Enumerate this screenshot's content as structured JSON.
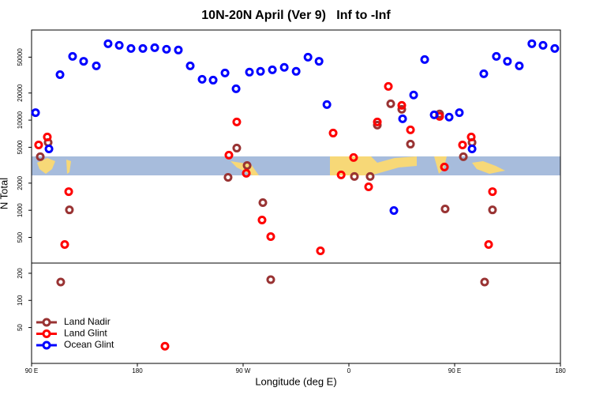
{
  "chart_data": {
    "type": "scatter",
    "title": "10N-20N April (Ver 9)   Inf to -Inf",
    "x_label": "Longitude (deg E)",
    "y_label": "N Total",
    "log_y": true,
    "legend": "lower-left",
    "xlim": [
      90,
      540
    ],
    "xticks": [
      {
        "value": 90,
        "label": "90 E"
      },
      {
        "value": 180,
        "label": "180"
      },
      {
        "value": 270,
        "label": "90 W"
      },
      {
        "value": 360,
        "label": "0"
      },
      {
        "value": 450,
        "label": "90 E"
      },
      {
        "value": 540,
        "label": "180"
      }
    ],
    "ylim": [
      20,
      100000
    ],
    "yticks": [
      50000,
      20000,
      10000,
      5000,
      2000,
      1000,
      500,
      200,
      100,
      50
    ],
    "series": [
      {
        "name": "Land Nadir",
        "color": "#993333",
        "x": [
          97.4,
          104.1,
          122.2,
          114.8,
          257.2,
          264.6,
          273.4,
          286.8,
          293.5,
          364.7,
          378.1,
          384.2,
          395.6,
          405,
          412.4,
          437.2,
          441.9,
          457.4,
          464.8,
          482.2,
          475.5
        ],
        "values": [
          3930,
          5650,
          1010,
          160,
          2320,
          4900,
          3140,
          1215,
          170,
          2370,
          2370,
          8800,
          15200,
          13200,
          5420,
          11700,
          1035,
          3930,
          5650,
          1010,
          160
        ]
      },
      {
        "name": "Land Glint",
        "color": "#ff0000",
        "x": [
          96,
          103.4,
          121.6,
          118.2,
          203.5,
          257.9,
          264.6,
          272.7,
          286.1,
          293.5,
          335.8,
          346.6,
          353.4,
          364,
          376.8,
          384.2,
          393.6,
          405,
          412.4,
          437.2,
          441.3,
          456.7,
          464.1,
          482.2,
          478.9
        ],
        "values": [
          5310,
          6500,
          1610,
          417,
          31,
          4090,
          9540,
          2570,
          780,
          510,
          355,
          7190,
          2470,
          3850,
          1820,
          9540,
          23700,
          14600,
          7800,
          11000,
          3020,
          5310,
          6500,
          1610,
          417
        ]
      },
      {
        "name": "Ocean Glint",
        "color": "#0000ff",
        "x": [
          93.4,
          104.8,
          114.2,
          124.9,
          134.3,
          145.1,
          155.1,
          164.6,
          174.6,
          184.7,
          194.8,
          204.8,
          214.9,
          225,
          235.1,
          244.5,
          254.6,
          264,
          275.4,
          284.8,
          294.9,
          305,
          315.1,
          325.2,
          334.6,
          341.3,
          398.3,
          405.7,
          415.1,
          424.5,
          432.6,
          445.3,
          454,
          464.8,
          474.8,
          485.5,
          494.9,
          505,
          515.7,
          525.2,
          535.2
        ],
        "values": [
          12100,
          4800,
          32000,
          51000,
          45000,
          40000,
          70500,
          67700,
          62400,
          62400,
          63700,
          61200,
          60000,
          40000,
          28400,
          27800,
          33400,
          22300,
          34100,
          34800,
          36200,
          38500,
          34800,
          50000,
          45000,
          14900,
          994,
          10350,
          19000,
          47000,
          11450,
          10800,
          12100,
          4800,
          32700,
          51000,
          45000,
          40000,
          70500,
          67700,
          62400
        ]
      }
    ]
  }
}
